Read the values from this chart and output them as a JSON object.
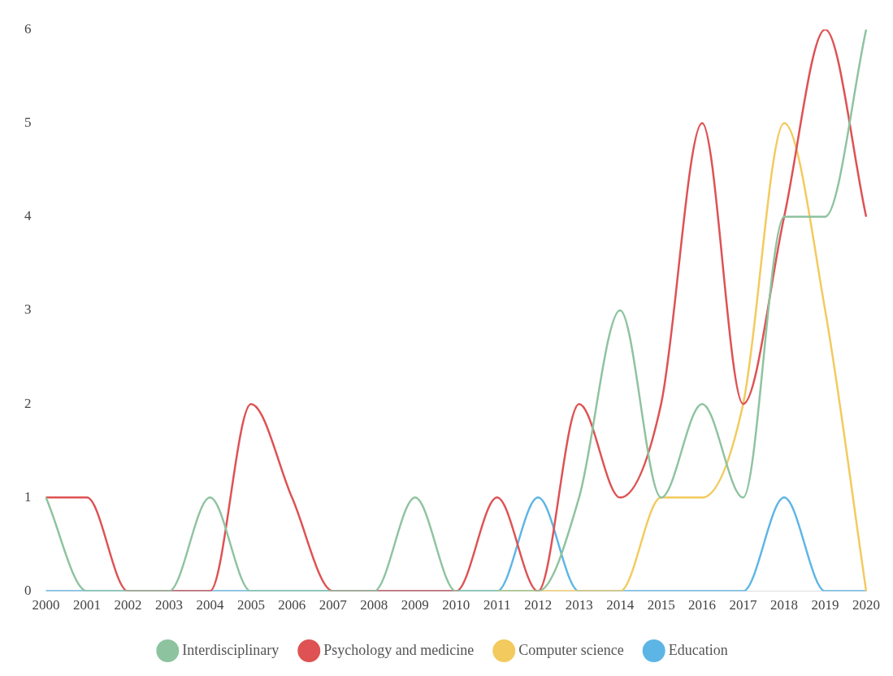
{
  "chart_data": {
    "type": "line",
    "categories": [
      "2000",
      "2001",
      "2002",
      "2003",
      "2004",
      "2005",
      "2006",
      "2007",
      "2008",
      "2009",
      "2010",
      "2011",
      "2012",
      "2013",
      "2014",
      "2015",
      "2016",
      "2017",
      "2018",
      "2019",
      "2020"
    ],
    "series": [
      {
        "name": "Interdisciplinary",
        "color": "#8ec3a0",
        "values": [
          1,
          0,
          0,
          0,
          1,
          0,
          0,
          0,
          0,
          1,
          0,
          0,
          0,
          1,
          3,
          1,
          2,
          1,
          4,
          4,
          6
        ]
      },
      {
        "name": "Psychology and medicine",
        "color": "#de5253",
        "values": [
          1,
          1,
          0,
          0,
          0,
          2,
          1,
          0,
          0,
          0,
          0,
          1,
          0,
          2,
          1,
          2,
          5,
          2,
          4,
          6,
          4
        ]
      },
      {
        "name": "Computer science",
        "color": "#f2ca5e",
        "values": [
          null,
          null,
          null,
          null,
          null,
          null,
          null,
          null,
          null,
          null,
          null,
          0,
          0,
          0,
          0,
          1,
          1,
          2,
          5,
          3,
          0
        ]
      },
      {
        "name": "Education",
        "color": "#5db5e5",
        "values": [
          0,
          0,
          0,
          0,
          0,
          0,
          0,
          0,
          0,
          0,
          0,
          0,
          1,
          0,
          0,
          0,
          0,
          0,
          1,
          0,
          0
        ]
      }
    ],
    "ylim": [
      0,
      6
    ],
    "yticks": [
      0,
      1,
      2,
      3,
      4,
      5,
      6
    ],
    "grid": false,
    "legend": "bottom",
    "marker": "none",
    "line_style": "solid"
  }
}
